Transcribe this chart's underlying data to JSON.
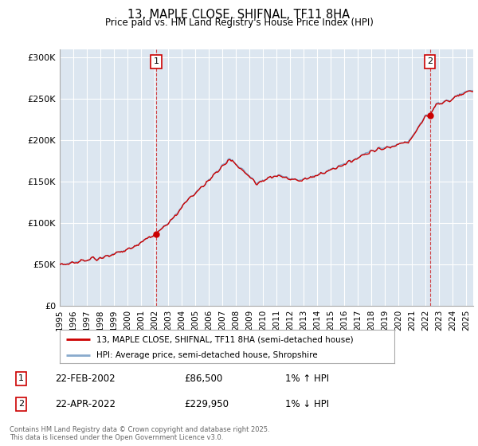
{
  "title": "13, MAPLE CLOSE, SHIFNAL, TF11 8HA",
  "subtitle": "Price paid vs. HM Land Registry's House Price Index (HPI)",
  "ylabel_ticks": [
    "£0",
    "£50K",
    "£100K",
    "£150K",
    "£200K",
    "£250K",
    "£300K"
  ],
  "ytick_values": [
    0,
    50000,
    100000,
    150000,
    200000,
    250000,
    300000
  ],
  "ylim": [
    0,
    310000
  ],
  "xlim_start": 1995.0,
  "xlim_end": 2025.5,
  "sale1_date": 2002.13,
  "sale1_price": 86500,
  "sale2_date": 2022.3,
  "sale2_price": 229950,
  "line_color_red": "#cc0000",
  "line_color_blue": "#88aacc",
  "bg_color": "#dce6f0",
  "grid_color": "#ffffff",
  "annotation_box_color": "#cc0000",
  "footer_text": "Contains HM Land Registry data © Crown copyright and database right 2025.\nThis data is licensed under the Open Government Licence v3.0.",
  "legend_label1": "13, MAPLE CLOSE, SHIFNAL, TF11 8HA (semi-detached house)",
  "legend_label2": "HPI: Average price, semi-detached house, Shropshire",
  "ann1_label": "1",
  "ann1_date_str": "22-FEB-2002",
  "ann1_price_str": "£86,500",
  "ann1_hpi_str": "1% ↑ HPI",
  "ann2_label": "2",
  "ann2_date_str": "22-APR-2022",
  "ann2_price_str": "£229,950",
  "ann2_hpi_str": "1% ↓ HPI",
  "xticks": [
    1995,
    1996,
    1997,
    1998,
    1999,
    2000,
    2001,
    2002,
    2003,
    2004,
    2005,
    2006,
    2007,
    2008,
    2009,
    2010,
    2011,
    2012,
    2013,
    2014,
    2015,
    2016,
    2017,
    2018,
    2019,
    2020,
    2021,
    2022,
    2023,
    2024,
    2025
  ]
}
